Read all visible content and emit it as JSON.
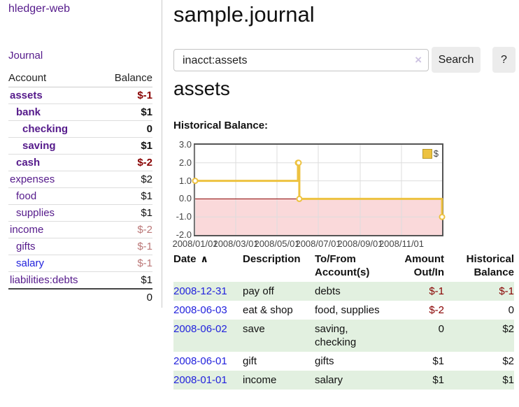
{
  "app": {
    "brand": "hledger-web"
  },
  "sidebar": {
    "journal_link": "Journal",
    "table": {
      "account_header": "Account",
      "balance_header": "Balance",
      "rows": [
        {
          "account": "assets",
          "balance": "$-1",
          "level": 0,
          "bold": true,
          "link_color": "purple",
          "balance_style": "negative"
        },
        {
          "account": "bank",
          "balance": "$1",
          "level": 1,
          "bold": true,
          "link_color": "purple",
          "balance_style": "plain"
        },
        {
          "account": "checking",
          "balance": "0",
          "level": 2,
          "bold": true,
          "link_color": "purple",
          "balance_style": "plain"
        },
        {
          "account": "saving",
          "balance": "$1",
          "level": 2,
          "bold": true,
          "link_color": "purple",
          "balance_style": "plain"
        },
        {
          "account": "cash",
          "balance": "$-2",
          "level": 1,
          "bold": true,
          "link_color": "purple",
          "balance_style": "negative"
        },
        {
          "account": "expenses",
          "balance": "$2",
          "level": 0,
          "bold": false,
          "link_color": "purple",
          "balance_style": "plain"
        },
        {
          "account": "food",
          "balance": "$1",
          "level": 1,
          "bold": false,
          "link_color": "purple",
          "balance_style": "plain"
        },
        {
          "account": "supplies",
          "balance": "$1",
          "level": 1,
          "bold": false,
          "link_color": "purple",
          "balance_style": "plain"
        },
        {
          "account": "income",
          "balance": "$-2",
          "level": 0,
          "bold": false,
          "link_color": "purple",
          "balance_style": "negative-faded"
        },
        {
          "account": "gifts",
          "balance": "$-1",
          "level": 1,
          "bold": false,
          "link_color": "purple",
          "balance_style": "negative-faded"
        },
        {
          "account": "salary",
          "balance": "$-1",
          "level": 1,
          "bold": false,
          "link_color": "blue",
          "balance_style": "negative-faded"
        },
        {
          "account": "liabilities:debts",
          "balance": "$1",
          "level": 0,
          "bold": false,
          "link_color": "purple",
          "balance_style": "plain"
        }
      ],
      "total": "0"
    }
  },
  "header": {
    "title": "sample.journal"
  },
  "search": {
    "query": "inacct:assets",
    "clear_icon": "×",
    "search_label": "Search",
    "help_label": "?"
  },
  "account_page": {
    "title": "assets",
    "chart_label": "Historical Balance:"
  },
  "chart_data": {
    "type": "line",
    "line_style": "steps",
    "title": "Historical Balance:",
    "series": [
      {
        "name": "$",
        "color": "#EDC240",
        "points": [
          [
            "2008-01-01",
            1
          ],
          [
            "2008-06-01",
            2
          ],
          [
            "2008-06-02",
            2
          ],
          [
            "2008-06-03",
            0
          ],
          [
            "2008-12-31",
            -1
          ]
        ]
      }
    ],
    "x_range": [
      "2008-01-01",
      "2008-12-31"
    ],
    "x_ticks": [
      "2008/01/01",
      "2008/03/01",
      "2008/05/01",
      "2008/07/01",
      "2008/09/01",
      "2008/11/01"
    ],
    "y_ticks": [
      3.0,
      2.0,
      1.0,
      0.0,
      -1.0,
      -2.0
    ],
    "y_tick_labels": [
      "3.0",
      "2.0",
      "1.0",
      "0.0",
      "-1.0",
      "-2.0"
    ],
    "ylim": [
      -2,
      3
    ],
    "grid": true,
    "legend": {
      "label": "$",
      "position": "top-right"
    },
    "negative_region_color": "#FAD9DA",
    "zero_line_color": "#8B0000",
    "grid_color": "#dddddd"
  },
  "register": {
    "columns": [
      {
        "label": "Date",
        "align": "left",
        "sort_indicator": "∧"
      },
      {
        "label": "Description",
        "align": "left"
      },
      {
        "label": "To/From Account(s)",
        "align": "left"
      },
      {
        "label": "Amount Out/In",
        "align": "right"
      },
      {
        "label": "Historical Balance",
        "align": "right"
      }
    ],
    "rows": [
      {
        "date": "2008-12-31",
        "description": "pay off",
        "accounts": "debts",
        "amount": "$-1",
        "balance": "$-1",
        "amount_negative": true,
        "balance_negative": true,
        "highlighted": true
      },
      {
        "date": "2008-06-03",
        "description": "eat & shop",
        "accounts": "food, supplies",
        "amount": "$-2",
        "balance": "0",
        "amount_negative": true,
        "balance_negative": false,
        "highlighted": false
      },
      {
        "date": "2008-06-02",
        "description": "save",
        "accounts": "saving, checking",
        "amount": "0",
        "balance": "$2",
        "amount_negative": false,
        "balance_negative": false,
        "highlighted": true
      },
      {
        "date": "2008-06-01",
        "description": "gift",
        "accounts": "gifts",
        "amount": "$1",
        "balance": "$2",
        "amount_negative": false,
        "balance_negative": false,
        "highlighted": false
      },
      {
        "date": "2008-01-01",
        "description": "income",
        "accounts": "salary",
        "amount": "$1",
        "balance": "$1",
        "amount_negative": false,
        "balance_negative": false,
        "highlighted": true
      }
    ]
  },
  "colors": {
    "accent_purple": "#551A8B",
    "link_blue": "#2222DD",
    "negative_red": "#880000",
    "negative_faded": "#BB7777",
    "row_highlight_green": "#E2F0E0",
    "chart_gold": "#EDC240"
  }
}
